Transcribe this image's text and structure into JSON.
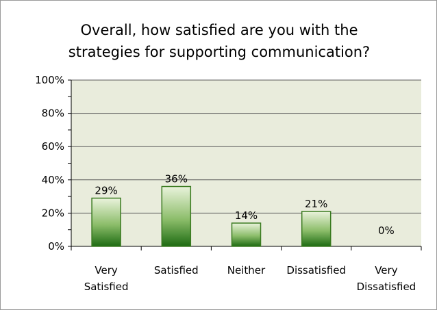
{
  "chart_data": {
    "type": "bar",
    "title_lines": [
      "Overall, how satisfied are you with the",
      "strategies for supporting communication?"
    ],
    "categories": [
      [
        "Very",
        "Satisfied"
      ],
      [
        "Satisfied"
      ],
      [
        "Neither"
      ],
      [
        "Dissatisfied"
      ],
      [
        "Very",
        "Dissatisfied"
      ]
    ],
    "values": [
      29,
      36,
      14,
      21,
      0
    ],
    "data_labels": [
      "29%",
      "36%",
      "14%",
      "21%",
      "0%"
    ],
    "ylim": [
      0,
      100
    ],
    "yticks": [
      0,
      20,
      40,
      60,
      80,
      100
    ],
    "ytick_labels": [
      "0%",
      "20%",
      "40%",
      "60%",
      "80%",
      "100%"
    ],
    "grid": true,
    "legend": "none",
    "colors": {
      "plot_background": "#e9ecdc",
      "gridline": "#5a5a5a",
      "bar_top": "#eaf3dc",
      "bar_bottom": "#1d6b12",
      "bar_border": "#3a7a20"
    }
  }
}
